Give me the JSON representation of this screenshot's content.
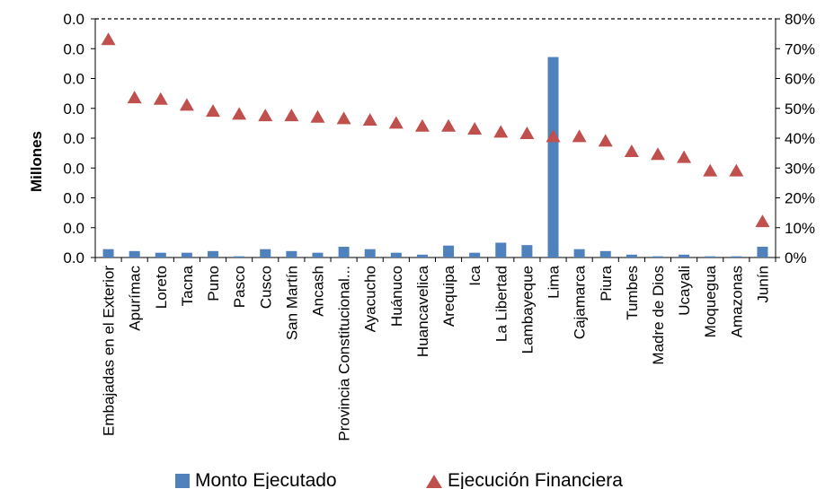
{
  "chart_data": {
    "type": "bar",
    "ylabel": "Millones",
    "left_axis": {
      "ticks": [
        "0.0",
        "0.0",
        "0.0",
        "0.0",
        "0.0",
        "0.0",
        "0.0",
        "0.0",
        "0.0"
      ]
    },
    "right_axis": {
      "ticks": [
        "0%",
        "10%",
        "20%",
        "30%",
        "40%",
        "50%",
        "60%",
        "70%",
        "80%"
      ],
      "ylim": [
        0,
        80
      ]
    },
    "categories": [
      "Embajadas en el Exterior",
      "Apurímac",
      "Loreto",
      "Tacna",
      "Puno",
      "Pasco",
      "Cusco",
      "San Martín",
      "Ancash",
      "Provincia Constitucional...",
      "Ayacucho",
      "Huánuco",
      "Huancavelica",
      "Arequipa",
      "Ica",
      "La Libertad",
      "Lambayeque",
      "Lima",
      "Cajamarca",
      "Piura",
      "Tumbes",
      "Madre de Dios",
      "Ucayali",
      "Moquegua",
      "Amazonas",
      "Junín"
    ],
    "series": [
      {
        "name": "Monto Ejecutado",
        "kind": "bar",
        "axis": "left",
        "color": "#4f81bd",
        "values": [
          0.35,
          0.27,
          0.2,
          0.2,
          0.27,
          0.05,
          0.35,
          0.27,
          0.2,
          0.45,
          0.35,
          0.2,
          0.12,
          0.5,
          0.2,
          0.62,
          0.52,
          8.4,
          0.35,
          0.27,
          0.12,
          0.05,
          0.12,
          0.05,
          0.05,
          0.45
        ]
      },
      {
        "name": "Ejecución Financiera",
        "kind": "scatter",
        "axis": "right",
        "color": "#c0504d",
        "values": [
          73,
          53.5,
          53,
          51,
          49,
          48,
          47.5,
          47.5,
          47,
          46.5,
          46,
          45,
          44,
          44,
          43,
          42,
          41.5,
          40.5,
          40.5,
          39,
          35.5,
          34.5,
          33.5,
          29,
          29,
          12
        ]
      }
    ],
    "left_scale_max": 10,
    "legend": {
      "position": "bottom",
      "entries": [
        "Monto Ejecutado",
        "Ejecución Financiera"
      ]
    },
    "grid": false
  }
}
